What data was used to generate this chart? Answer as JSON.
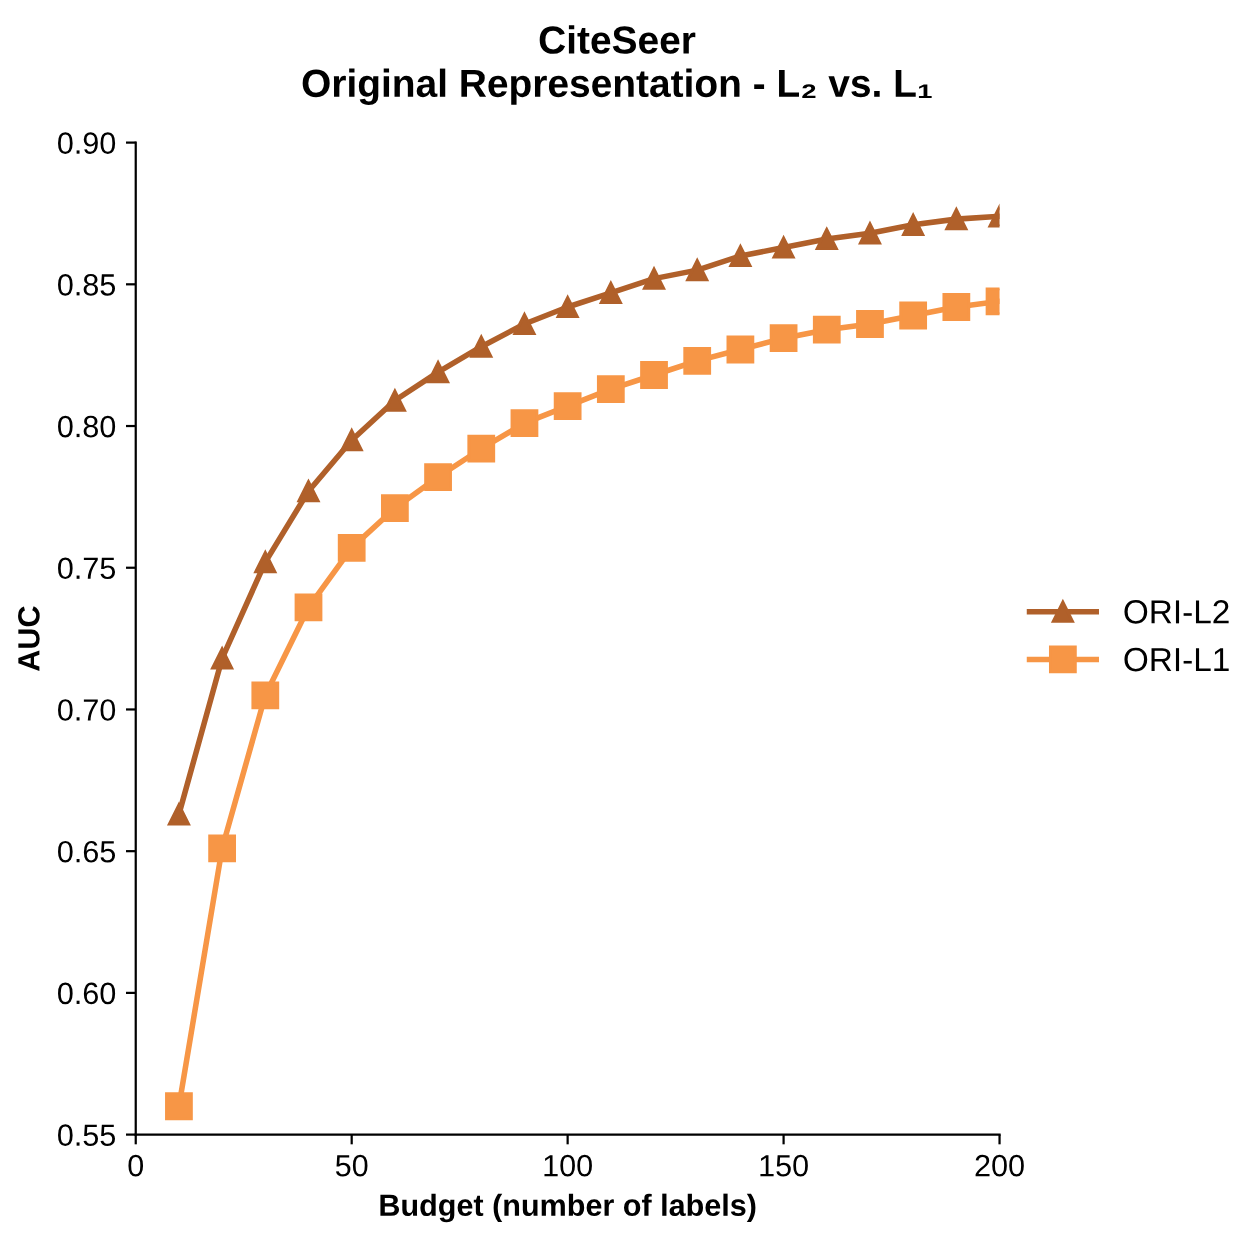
{
  "chart_data": {
    "type": "line",
    "title": "CiteSeer",
    "subtitle": "Original Representation - L₂ vs. L₁",
    "xlabel": "Budget (number of labels)",
    "ylabel": "AUC",
    "x": [
      10,
      20,
      30,
      40,
      50,
      60,
      70,
      80,
      90,
      100,
      110,
      120,
      130,
      140,
      150,
      160,
      170,
      180,
      190,
      200
    ],
    "series": [
      {
        "name": "ORI-L2",
        "color": "#b0602a",
        "marker": "triangle",
        "values": [
          0.663,
          0.718,
          0.752,
          0.777,
          0.795,
          0.809,
          0.819,
          0.828,
          0.836,
          0.842,
          0.847,
          0.852,
          0.855,
          0.86,
          0.863,
          0.866,
          0.868,
          0.871,
          0.873,
          0.874
        ]
      },
      {
        "name": "ORI-L1",
        "color": "#f79646",
        "marker": "square",
        "values": [
          0.56,
          0.651,
          0.705,
          0.736,
          0.757,
          0.771,
          0.782,
          0.792,
          0.801,
          0.807,
          0.813,
          0.818,
          0.823,
          0.827,
          0.831,
          0.834,
          0.836,
          0.839,
          0.842,
          0.844
        ]
      }
    ],
    "xlim": [
      0,
      200
    ],
    "xticks": [
      0,
      50,
      100,
      150,
      200
    ],
    "ylim": [
      0.55,
      0.9
    ],
    "yticks": [
      {
        "value": 0.55,
        "label": "0.55"
      },
      {
        "value": 0.6,
        "label": "0.60"
      },
      {
        "value": 0.65,
        "label": "0.65"
      },
      {
        "value": 0.7,
        "label": "0.70"
      },
      {
        "value": 0.75,
        "label": "0.75"
      },
      {
        "value": 0.8,
        "label": "0.80"
      },
      {
        "value": 0.85,
        "label": "0.85"
      },
      {
        "value": 0.9,
        "label": "0.90"
      }
    ],
    "grid": false,
    "legend": "right"
  }
}
